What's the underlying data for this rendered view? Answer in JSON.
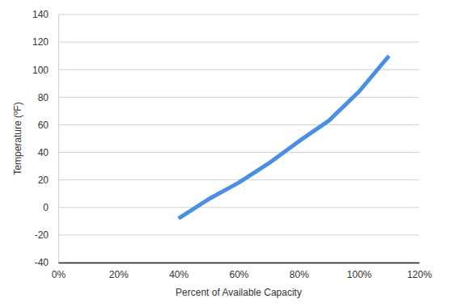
{
  "chart_data": {
    "type": "line",
    "x_label": "Percent of Available Capacity",
    "y_label": "Temperature (ºF)",
    "x": [
      40,
      50,
      60,
      70,
      80,
      90,
      100,
      110
    ],
    "values": [
      -8,
      6,
      18,
      32,
      48,
      63,
      84,
      110
    ],
    "color": "#4a90e2",
    "xlim": [
      0,
      120
    ],
    "xticks": [
      {
        "value": 0,
        "label": "0%"
      },
      {
        "value": 20,
        "label": "20%"
      },
      {
        "value": 40,
        "label": "40%"
      },
      {
        "value": 60,
        "label": "60%"
      },
      {
        "value": 80,
        "label": "80%"
      },
      {
        "value": 100,
        "label": "100%"
      },
      {
        "value": 120,
        "label": "120%"
      }
    ],
    "ylim": [
      -40,
      140
    ],
    "yticks": [
      -40,
      -20,
      0,
      20,
      40,
      60,
      80,
      100,
      120,
      140
    ],
    "grid": true
  }
}
